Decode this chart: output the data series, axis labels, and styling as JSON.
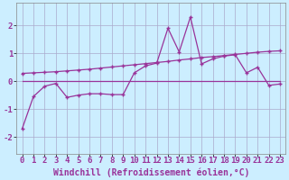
{
  "background_color": "#cceeff",
  "grid_color": "#aaaacc",
  "line_color": "#993399",
  "x_values": [
    0,
    1,
    2,
    3,
    4,
    5,
    6,
    7,
    8,
    9,
    10,
    11,
    12,
    13,
    14,
    15,
    16,
    17,
    18,
    19,
    20,
    21,
    22,
    23
  ],
  "y_main": [
    -1.7,
    -0.55,
    -0.18,
    -0.08,
    -0.58,
    -0.5,
    -0.45,
    -0.45,
    -0.48,
    -0.48,
    0.3,
    0.55,
    0.65,
    1.9,
    1.05,
    2.3,
    0.62,
    0.8,
    0.9,
    0.95,
    0.3,
    0.5,
    -0.15,
    -0.1
  ],
  "y_upper": [
    0.28,
    0.3,
    0.32,
    0.34,
    0.37,
    0.4,
    0.43,
    0.47,
    0.51,
    0.55,
    0.59,
    0.63,
    0.67,
    0.71,
    0.76,
    0.8,
    0.85,
    0.88,
    0.92,
    0.96,
    1.0,
    1.04,
    1.07,
    1.09
  ],
  "y_flat": [
    0.0,
    0.0,
    0.0,
    0.0,
    0.0,
    0.0,
    0.0,
    0.0,
    0.0,
    0.0,
    0.0,
    0.0,
    0.0,
    0.0,
    0.0,
    0.0,
    0.0,
    0.0,
    0.0,
    0.0,
    0.0,
    0.0,
    0.0,
    0.0
  ],
  "ylim": [
    -2.6,
    2.8
  ],
  "yticks": [
    -2,
    -1,
    0,
    1,
    2
  ],
  "xlim": [
    -0.5,
    23.5
  ],
  "xlabel": "Windchill (Refroidissement éolien,°C)",
  "tick_fontsize": 6.5,
  "xlabel_fontsize": 7.0
}
